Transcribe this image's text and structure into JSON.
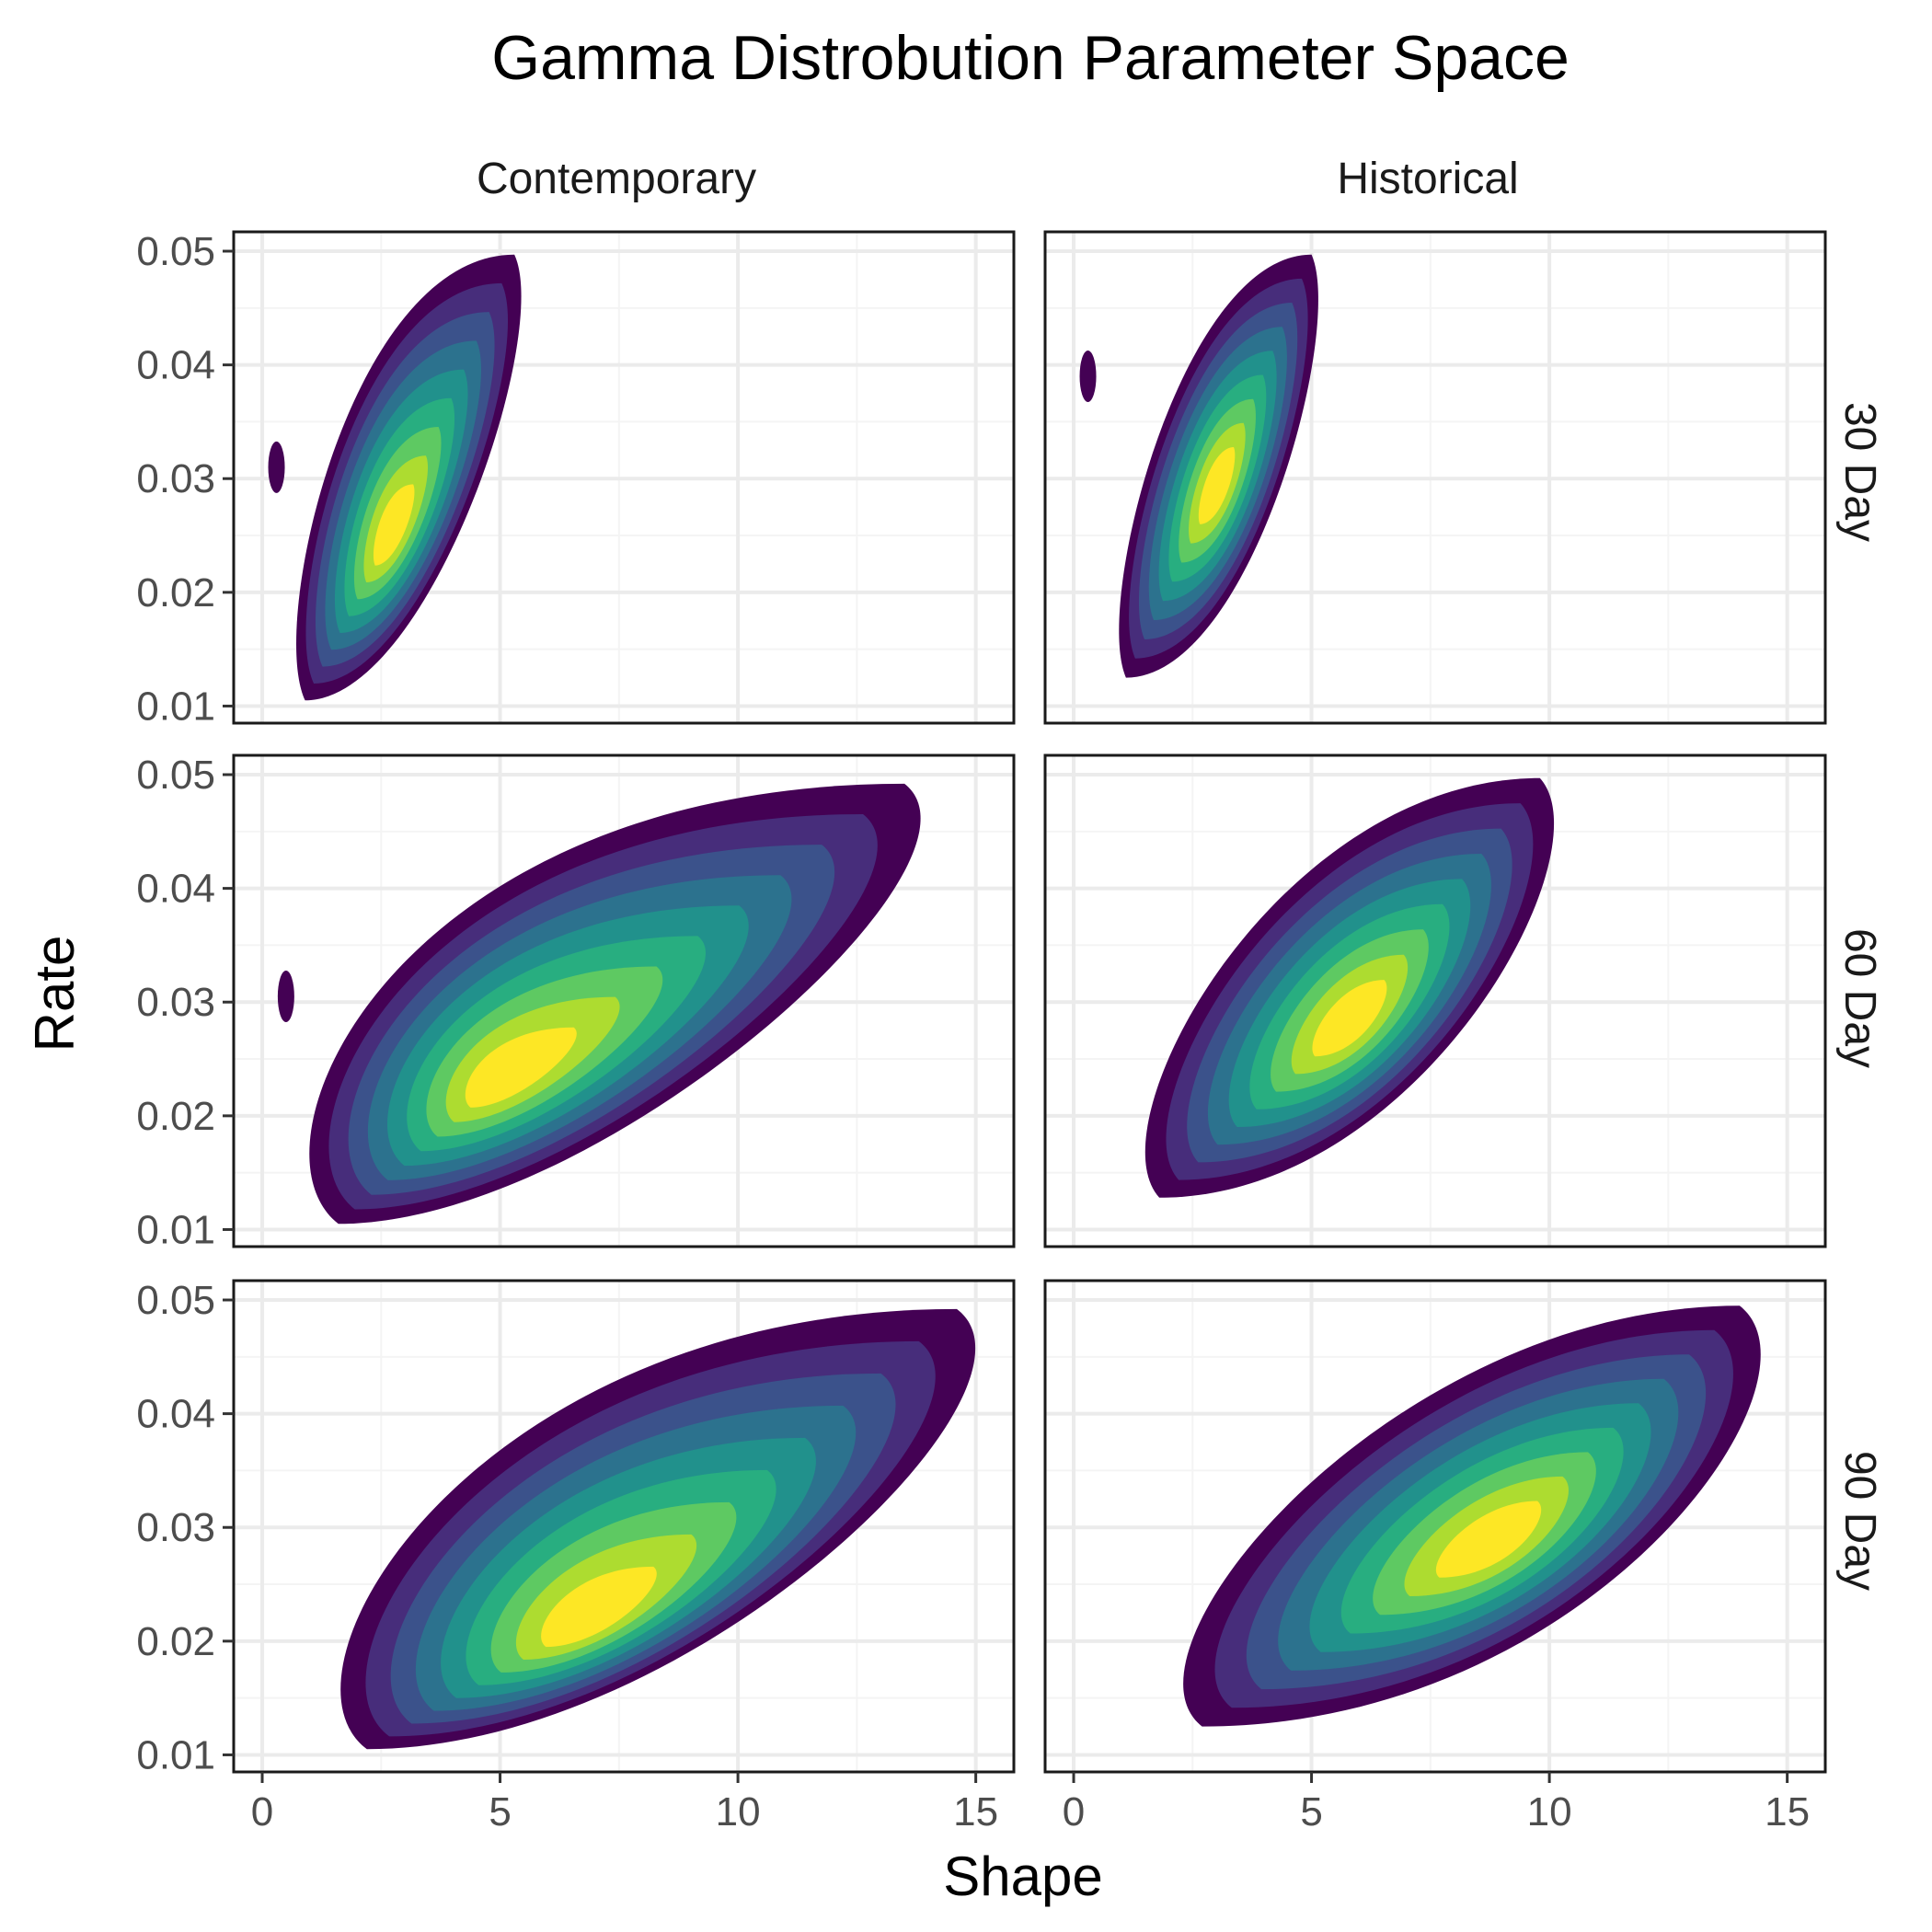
{
  "chart_data": {
    "type": "contour",
    "title": "Gamma Distrobution Parameter Space",
    "xlabel": "Shape",
    "ylabel": "Rate",
    "xlim": [
      -0.6,
      15.8
    ],
    "ylim": [
      0.0085,
      0.0517
    ],
    "x_ticks": [
      0,
      5,
      10,
      15
    ],
    "x_tick_labels": [
      "0",
      "5",
      "10",
      "15"
    ],
    "y_ticks": [
      0.01,
      0.02,
      0.03,
      0.04,
      0.05
    ],
    "y_tick_labels": [
      "0.01",
      "0.02",
      "0.03",
      "0.04",
      "0.05"
    ],
    "grid": true,
    "legend": "none",
    "colors": {
      "levels": [
        "#440154",
        "#472d7b",
        "#3b528b",
        "#2c728e",
        "#21918c",
        "#28ae80",
        "#5ec962",
        "#addc30",
        "#fde725"
      ],
      "panel_border": "#1a1a1a",
      "grid_major": "#ebebeb",
      "grid_minor": "#f4f4f4",
      "axis_text": "#4d4d4d",
      "background": "#ffffff"
    },
    "columns": [
      "Contemporary",
      "Historical"
    ],
    "rows": [
      "30 Day",
      "60 Day",
      "90 Day"
    ],
    "panels": [
      {
        "row": "30 Day",
        "column": "Contemporary",
        "peak": {
          "shape": 2.7,
          "rate": 0.025
        },
        "x_range": [
          0.9,
          5.3
        ],
        "rate_range": [
          0.0105,
          0.0497
        ],
        "outlier": {
          "shape": 0.3,
          "rate": 0.031
        }
      },
      {
        "row": "30 Day",
        "column": "Historical",
        "peak": {
          "shape": 3.0,
          "rate": 0.029
        },
        "x_range": [
          1.1,
          5.0
        ],
        "rate_range": [
          0.0125,
          0.0497
        ],
        "outlier": {
          "shape": 0.3,
          "rate": 0.039
        }
      },
      {
        "row": "60 Day",
        "column": "Contemporary",
        "peak": {
          "shape": 5.0,
          "rate": 0.023
        },
        "x_range": [
          1.6,
          13.5
        ],
        "rate_range": [
          0.0105,
          0.0492
        ],
        "outlier": {
          "shape": 0.5,
          "rate": 0.0305
        }
      },
      {
        "row": "60 Day",
        "column": "Historical",
        "peak": {
          "shape": 5.8,
          "rate": 0.028
        },
        "x_range": [
          1.8,
          9.8
        ],
        "rate_range": [
          0.0128,
          0.0497
        ],
        "outlier": null
      },
      {
        "row": "90 Day",
        "column": "Contemporary",
        "peak": {
          "shape": 6.8,
          "rate": 0.0215
        },
        "x_range": [
          2.2,
          14.6
        ],
        "rate_range": [
          0.0105,
          0.0492
        ],
        "outlier": null
      },
      {
        "row": "90 Day",
        "column": "Historical",
        "peak": {
          "shape": 8.8,
          "rate": 0.0285
        },
        "x_range": [
          2.7,
          14.0
        ],
        "rate_range": [
          0.0125,
          0.0495
        ],
        "outlier": null
      }
    ]
  }
}
